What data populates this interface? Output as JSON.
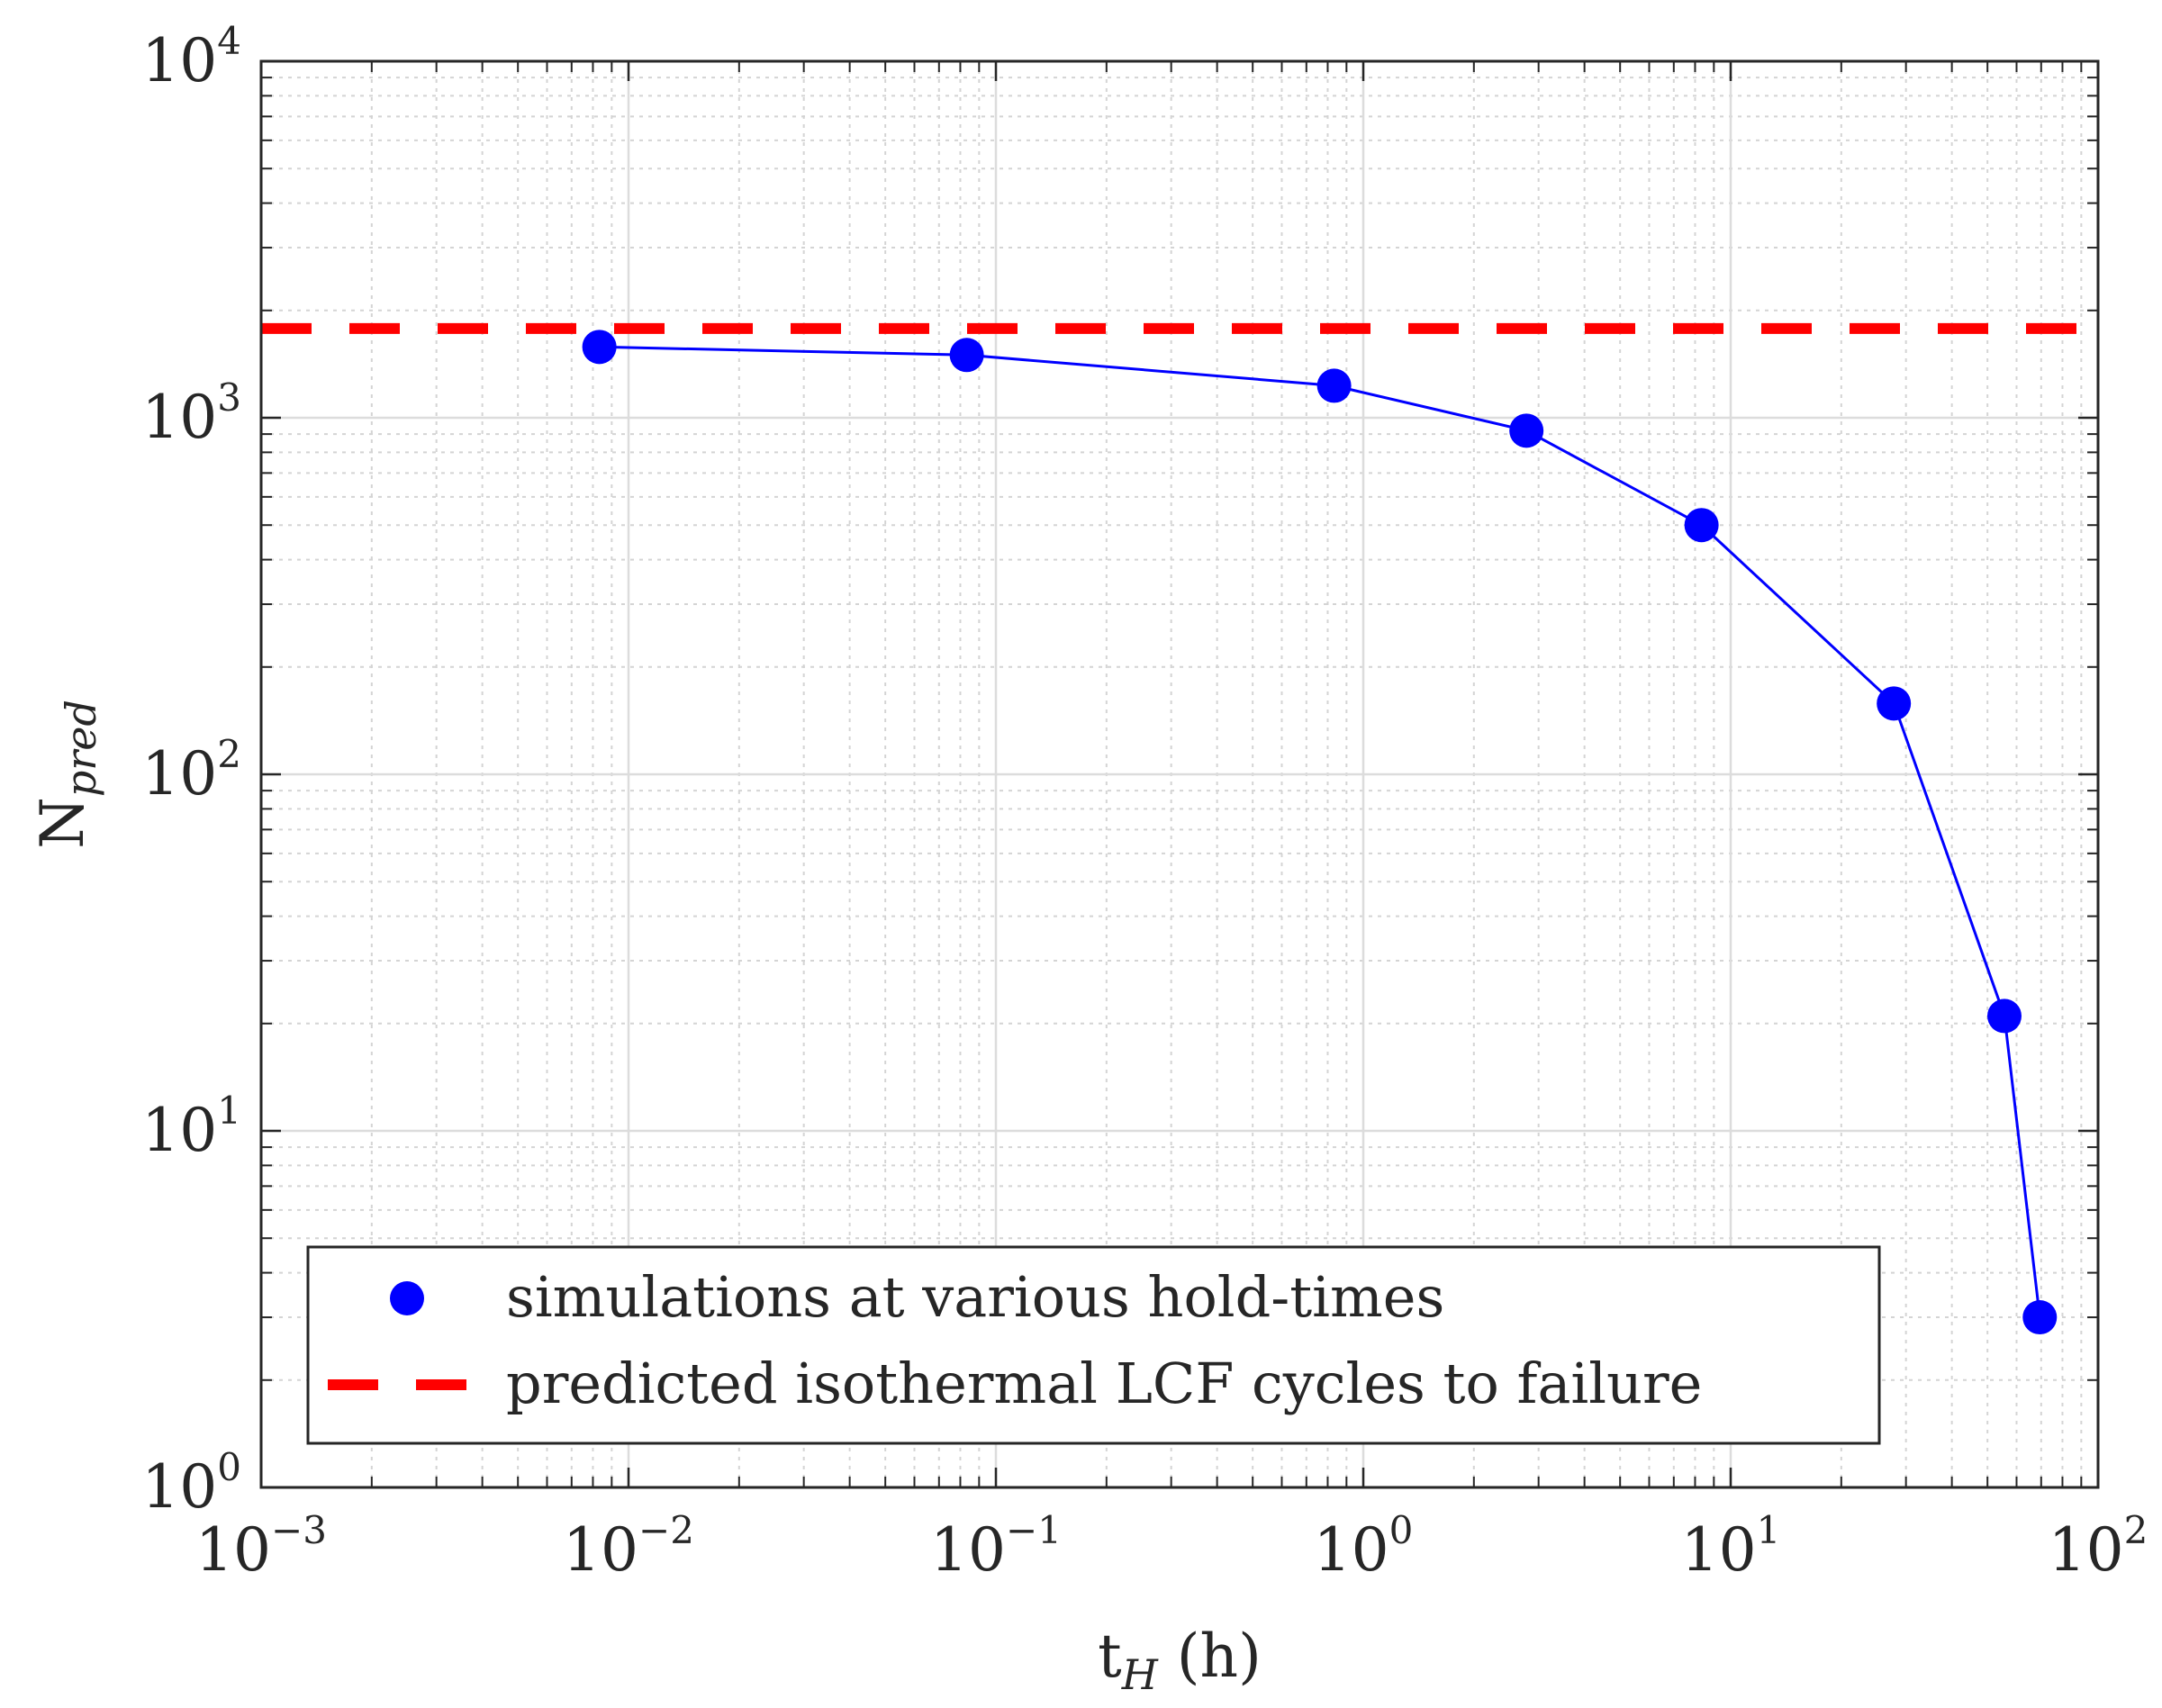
{
  "chart_data": {
    "type": "line",
    "xscale": "log",
    "yscale": "log",
    "xlim": [
      0.001,
      100
    ],
    "ylim": [
      1,
      10000
    ],
    "grid": true,
    "minor_grid": true,
    "xlabel": {
      "main": "t",
      "sub": "H",
      "suffix": " (h)"
    },
    "ylabel": {
      "main": "N",
      "sub": "pred"
    },
    "x_ticks": [
      {
        "value": 0.001,
        "base": "10",
        "exp": "−3"
      },
      {
        "value": 0.01,
        "base": "10",
        "exp": "−2"
      },
      {
        "value": 0.1,
        "base": "10",
        "exp": "−1"
      },
      {
        "value": 1,
        "base": "10",
        "exp": "0"
      },
      {
        "value": 10,
        "base": "10",
        "exp": "1"
      },
      {
        "value": 100,
        "base": "10",
        "exp": "2"
      }
    ],
    "y_ticks": [
      {
        "value": 1,
        "base": "10",
        "exp": "0"
      },
      {
        "value": 10,
        "base": "10",
        "exp": "1"
      },
      {
        "value": 100,
        "base": "10",
        "exp": "2"
      },
      {
        "value": 1000,
        "base": "10",
        "exp": "3"
      },
      {
        "value": 10000,
        "base": "10",
        "exp": "4"
      }
    ],
    "series": [
      {
        "name": "simulations at various hold-times",
        "color": "#0000ff",
        "marker": "circle",
        "line": "solid",
        "x": [
          0.00833,
          0.0833,
          0.833,
          2.78,
          8.33,
          27.8,
          55.6,
          69.4
        ],
        "y": [
          1580,
          1500,
          1230,
          920,
          500,
          158,
          21,
          3
        ]
      },
      {
        "name": "predicted isothermal LCF cycles to failure",
        "color": "#ff0000",
        "marker": "none",
        "line": "dashed",
        "x": [
          0.001,
          100
        ],
        "y": [
          1780,
          1780
        ]
      }
    ],
    "legend": {
      "position": "bottom-left",
      "entries": [
        "simulations at various hold-times",
        "predicted isothermal LCF cycles to failure"
      ]
    }
  }
}
